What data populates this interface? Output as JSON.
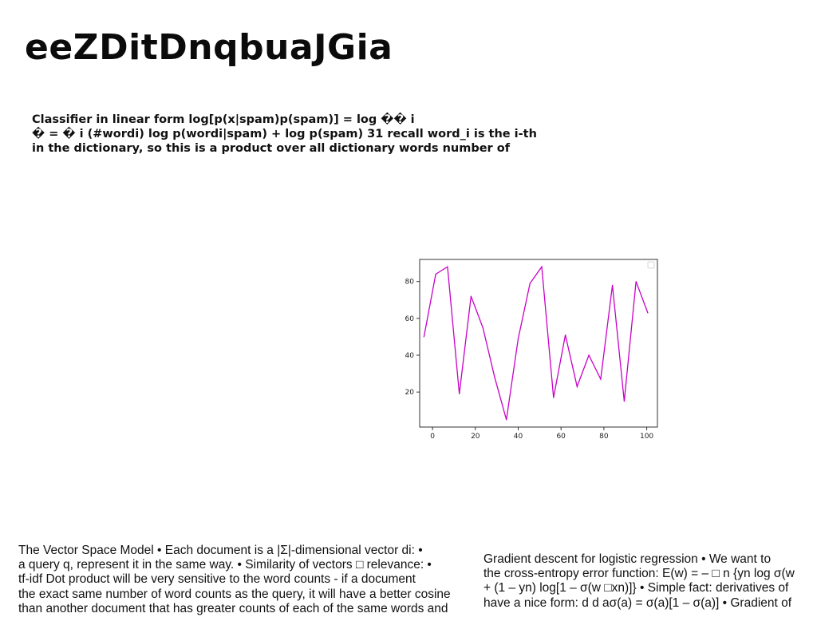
{
  "page": {
    "title": "eeZDitDnqbuaJGia"
  },
  "bold_paragraph": {
    "lines": [
      "Classifier in linear form log[p(x|spam)p(spam)] = log �� i",
      "� = � i (#wordi) log p(wordi|spam) + log p(spam) 31 recall word_i is the i-th",
      "in the dictionary, so this is a product over all dictionary words number of"
    ]
  },
  "left_paragraph": {
    "lines": [
      "The Vector Space Model • Each document is a |Σ|-dimensional vector di: •",
      "a query q, represent it in the same way. • Similarity of vectors □ relevance: •",
      " tf-idf Dot product will be very sensitive to the word counts - if a document",
      "the exact same number of word counts as the query, it will have a better cosine",
      "than another document that has greater counts of each of the same words and"
    ]
  },
  "right_paragraph": {
    "lines": [
      "Gradient descent for logistic regression • We want to",
      "the cross-entropy error function: E(w) = – □ n {yn log σ(w",
      "+ (1 – yn) log[1 – σ(w □xn)]} • Simple fact: derivatives of",
      "have a nice form: d d aσ(a) = σ(a)[1 – σ(a)] • Gradient of"
    ]
  },
  "chart_data": {
    "type": "line",
    "title": "",
    "xlabel": "",
    "ylabel": "",
    "xlim": [
      -6,
      105
    ],
    "ylim": [
      1,
      92
    ],
    "xticks": [
      0,
      20,
      40,
      60,
      80,
      100
    ],
    "yticks": [
      20,
      40,
      60,
      80
    ],
    "grid": false,
    "legend": "top-right",
    "series": [
      {
        "color": "#c800c8",
        "x": [
          -4,
          1.5,
          7,
          12.5,
          18,
          23.5,
          29,
          34.5,
          40,
          45.5,
          51,
          56.5,
          62,
          67.5,
          73,
          78.5,
          84,
          89.5,
          95,
          100.5
        ],
        "y": [
          50,
          84,
          88,
          19,
          72,
          55,
          28,
          5,
          49,
          79,
          88,
          17,
          51,
          23,
          40,
          27,
          78,
          15,
          80,
          63
        ]
      }
    ]
  }
}
